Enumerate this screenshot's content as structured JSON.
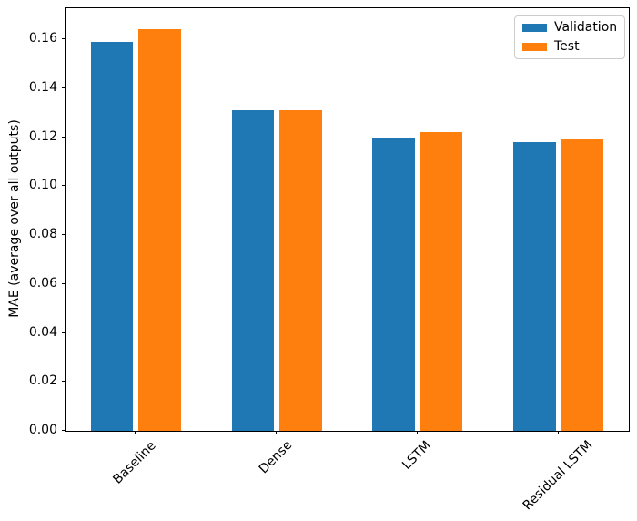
{
  "figure": {
    "background": "#ffffff",
    "spine_color": "#000000",
    "text_color": "#000000"
  },
  "chart_data": {
    "type": "bar",
    "categories": [
      "Baseline",
      "Dense",
      "LSTM",
      "Residual LSTM"
    ],
    "series": [
      {
        "name": "Validation",
        "color": "#1f77b4",
        "values": [
          0.159,
          0.131,
          0.12,
          0.118
        ]
      },
      {
        "name": "Test",
        "color": "#ff7f0e",
        "values": [
          0.164,
          0.131,
          0.122,
          0.119
        ]
      }
    ],
    "title": "",
    "xlabel": "",
    "ylabel": "MAE (average over all outputs)",
    "ylim": [
      0,
      0.1727
    ],
    "yticks": [
      0.0,
      0.02,
      0.04,
      0.06,
      0.08,
      0.1,
      0.12,
      0.14,
      0.16
    ],
    "ytick_decimals": 2,
    "xtick_rotation": 45,
    "grid": false,
    "legend": {
      "position": "upper right"
    },
    "bar_width_frac": 0.3,
    "bar_offset_frac": 0.17
  }
}
